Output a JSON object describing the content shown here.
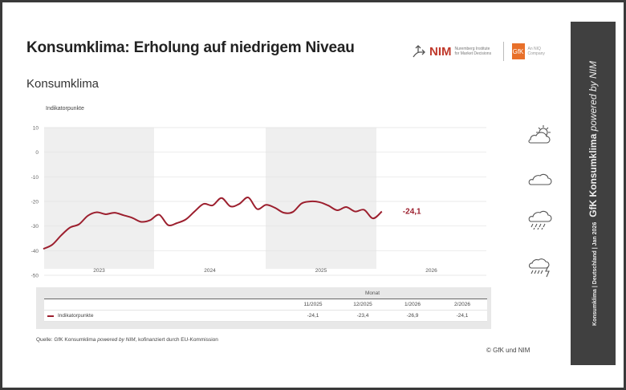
{
  "header": {
    "title": "Konsumklima: Erholung auf niedrigem Niveau",
    "subtitle": "Konsumklima"
  },
  "logos": {
    "nim": "NIM",
    "nim_sub": "Nuremberg Institute for Market Decisions",
    "gfk": "GfK",
    "gfk_sub": "An NIQ Company"
  },
  "colors": {
    "line": "#9c1f2e",
    "band": "#efefef",
    "sidebar": "#404040"
  },
  "chart_data": {
    "type": "line",
    "ylabel": "Indikatorpunkte",
    "ylim": [
      -50,
      10
    ],
    "yticks": [
      10,
      0,
      -10,
      -20,
      -30,
      -40,
      -50
    ],
    "year_labels": [
      "2023",
      "2024",
      "2025",
      "2026"
    ],
    "grid": true,
    "x": [
      "12/2022",
      "1/2023",
      "2/2023",
      "3/2023",
      "4/2023",
      "5/2023",
      "6/2023",
      "7/2023",
      "8/2023",
      "9/2023",
      "10/2023",
      "11/2023",
      "12/2023",
      "1/2024",
      "2/2024",
      "3/2024",
      "4/2024",
      "5/2024",
      "6/2024",
      "7/2024",
      "8/2024",
      "9/2024",
      "10/2024",
      "11/2024",
      "12/2024",
      "1/2025",
      "2/2025",
      "3/2025",
      "4/2025",
      "5/2025",
      "6/2025",
      "7/2025",
      "8/2025",
      "9/2025",
      "10/2025",
      "11/2025",
      "12/2025",
      "1/2026",
      "2/2026"
    ],
    "series": [
      {
        "name": "Indikatorpunkte",
        "values": [
          -39.3,
          -37.6,
          -33.8,
          -30.6,
          -29.3,
          -25.8,
          -24.4,
          -25.2,
          -24.6,
          -25.6,
          -26.7,
          -28.3,
          -27.6,
          -25.4,
          -29.6,
          -28.8,
          -27.3,
          -24.0,
          -21.0,
          -21.6,
          -18.6,
          -22.0,
          -21.0,
          -18.4,
          -23.1,
          -21.4,
          -22.6,
          -24.6,
          -24.3,
          -20.8,
          -20.0,
          -20.3,
          -21.7,
          -23.6,
          -22.3,
          -24.1,
          -23.4,
          -26.9,
          -24.1
        ]
      }
    ],
    "end_label": "-24,1"
  },
  "table": {
    "group_header": "Monat",
    "columns": [
      "11/2025",
      "12/2025",
      "1/2026",
      "2/2026"
    ],
    "row_label": "Indikatorpunkte",
    "values": [
      "-24,1",
      "-23,4",
      "-26,9",
      "-24,1"
    ]
  },
  "weather_icons": [
    "sun-behind-cloud-icon",
    "cloud-icon",
    "cloud-rain-icon",
    "cloud-thunderstorm-icon"
  ],
  "footer": {
    "source_prefix": "Quelle: GfK Konsumklima ",
    "source_italic": "powered by NIM",
    "source_suffix": ", kofinanziert durch EU-Kommission",
    "copyright": "© GfK und NIM"
  },
  "sidebar": {
    "small": "Konsumklima  |  Deutschland  |  Jan 2026",
    "big": "GfK Konsumklima",
    "big_italic": "powered by NIM"
  }
}
